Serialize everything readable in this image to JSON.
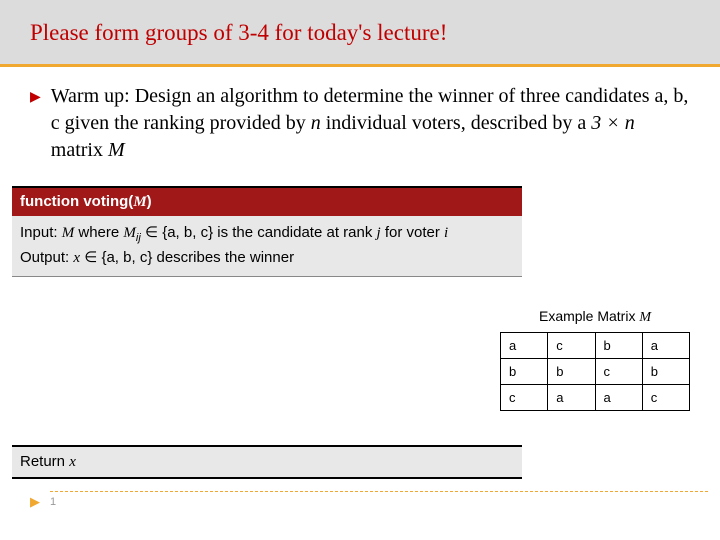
{
  "header": {
    "title": "Please form groups of 3-4 for today's lecture!",
    "title_color": "#c00000",
    "band_color": "#dcdcdc",
    "accent_line_color": "#f0a830"
  },
  "bullet": {
    "text_prefix": "Warm up: Design an algorithm to determine the winner of three candidates a, b, c given the ranking provided by ",
    "var1": "n",
    "text_mid": " individual voters, described by a ",
    "dim": "3 × n",
    "text_after": " matrix ",
    "var2": "M"
  },
  "func": {
    "header_prefix": "function voting(",
    "header_var": "M",
    "header_suffix": ")",
    "header_bg": "#a01818",
    "input_prefix": "Input: ",
    "input_M": "M",
    "input_where": " where ",
    "input_Mij": "M",
    "input_sub": "ij",
    "input_in": " ∈ {a, b, c} is the candidate at rank ",
    "input_j": "j",
    "input_for": " for voter ",
    "input_i": "i",
    "output_prefix": "Output: ",
    "output_x": "x",
    "output_rest": " ∈ {a, b, c} describes the winner"
  },
  "example": {
    "label_prefix": "Example Matrix ",
    "label_var": "M",
    "rows": [
      [
        "a",
        "c",
        "b",
        "a"
      ],
      [
        "b",
        "b",
        "c",
        "b"
      ],
      [
        "c",
        "a",
        "a",
        "c"
      ]
    ]
  },
  "return": {
    "prefix": "Return ",
    "var": "x"
  },
  "footer": {
    "page": "1"
  }
}
